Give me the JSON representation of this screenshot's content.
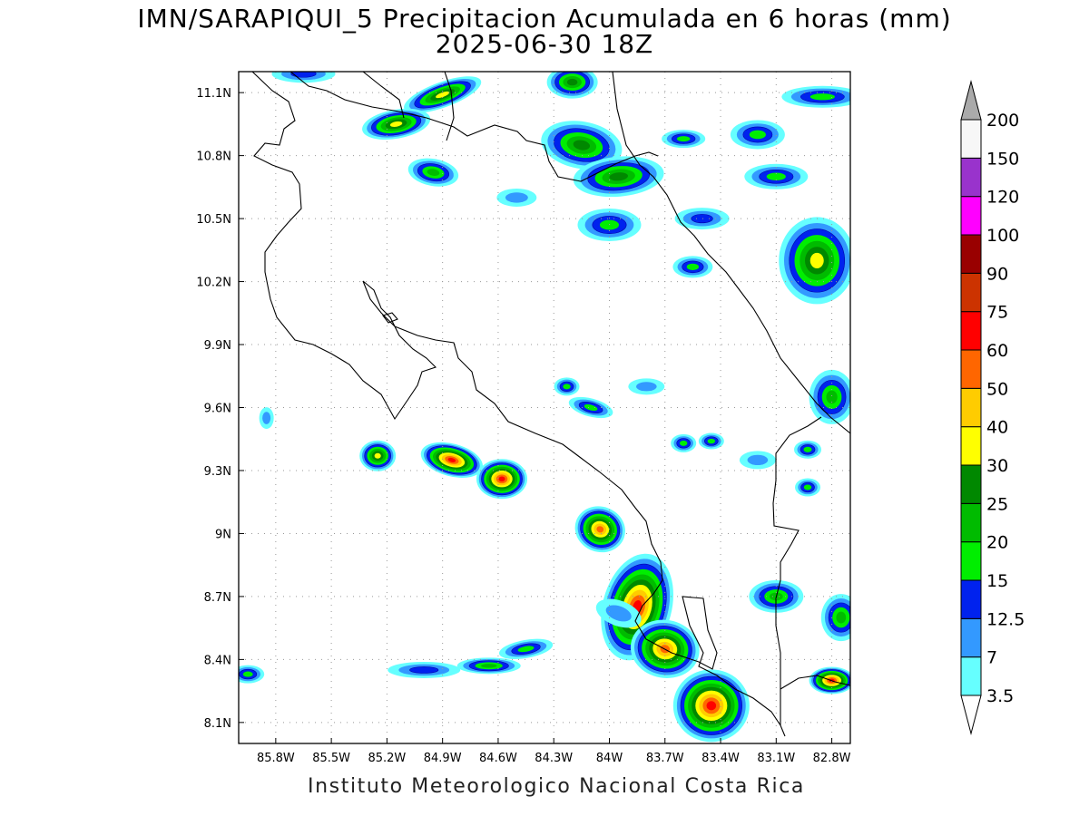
{
  "title": {
    "line1": "IMN/SARAPIQUI_5 Precipitacion Acumulada en 6 horas (mm)",
    "line2": "2025-06-30 18Z"
  },
  "credit": "Instituto Meteorologico Nacional Costa Rica",
  "map": {
    "lon_range": [
      -86.0,
      -82.7
    ],
    "lat_range": [
      8.0,
      11.2
    ],
    "lon_ticks": [
      {
        "value": -85.8,
        "label": "85.8W"
      },
      {
        "value": -85.5,
        "label": "85.5W"
      },
      {
        "value": -85.2,
        "label": "85.2W"
      },
      {
        "value": -84.9,
        "label": "84.9W"
      },
      {
        "value": -84.6,
        "label": "84.6W"
      },
      {
        "value": -84.3,
        "label": "84.3W"
      },
      {
        "value": -84.0,
        "label": "84W"
      },
      {
        "value": -83.7,
        "label": "83.7W"
      },
      {
        "value": -83.4,
        "label": "83.4W"
      },
      {
        "value": -83.1,
        "label": "83.1W"
      },
      {
        "value": -82.8,
        "label": "82.8W"
      }
    ],
    "lat_ticks": [
      {
        "value": 11.1,
        "label": "11.1N"
      },
      {
        "value": 10.8,
        "label": "10.8N"
      },
      {
        "value": 10.5,
        "label": "10.5N"
      },
      {
        "value": 10.2,
        "label": "10.2N"
      },
      {
        "value": 9.9,
        "label": "9.9N"
      },
      {
        "value": 9.6,
        "label": "9.6N"
      },
      {
        "value": 9.3,
        "label": "9.3N"
      },
      {
        "value": 9.0,
        "label": "9N"
      },
      {
        "value": 8.7,
        "label": "8.7N"
      },
      {
        "value": 8.4,
        "label": "8.4N"
      },
      {
        "value": 8.1,
        "label": "8.1N"
      }
    ],
    "grid": true,
    "colorbar": {
      "labels": [
        "3.5",
        "7",
        "12.5",
        "15",
        "20",
        "25",
        "30",
        "40",
        "50",
        "60",
        "75",
        "90",
        "100",
        "120",
        "150",
        "200"
      ],
      "colors": [
        "#66ffff",
        "#3399ff",
        "#0022ee",
        "#00ee00",
        "#00bb00",
        "#008800",
        "#ffff00",
        "#ffcc00",
        "#ff6600",
        "#ff0000",
        "#cc3300",
        "#990000",
        "#ff00ff",
        "#9933cc",
        "#f7f7f7"
      ],
      "over_color": "#aaaaaa",
      "under_color": "#ffffff"
    },
    "precip_cells": [
      {
        "lon": -84.9,
        "lat": 11.09,
        "rx": 45,
        "ry": 14,
        "rot": -20,
        "max": 6
      },
      {
        "lon": -85.15,
        "lat": 10.95,
        "rx": 38,
        "ry": 16,
        "rot": -10,
        "max": 6
      },
      {
        "lon": -85.65,
        "lat": 11.19,
        "rx": 35,
        "ry": 10,
        "rot": 0,
        "max": 2
      },
      {
        "lon": -84.2,
        "lat": 11.15,
        "rx": 28,
        "ry": 18,
        "rot": 0,
        "max": 5
      },
      {
        "lon": -84.15,
        "lat": 10.85,
        "rx": 45,
        "ry": 26,
        "rot": 10,
        "max": 5
      },
      {
        "lon": -83.95,
        "lat": 10.7,
        "rx": 50,
        "ry": 22,
        "rot": -5,
        "max": 5
      },
      {
        "lon": -84.95,
        "lat": 10.72,
        "rx": 28,
        "ry": 15,
        "rot": 10,
        "max": 4
      },
      {
        "lon": -83.6,
        "lat": 10.88,
        "rx": 24,
        "ry": 10,
        "rot": 0,
        "max": 3
      },
      {
        "lon": -83.2,
        "lat": 10.9,
        "rx": 30,
        "ry": 16,
        "rot": 0,
        "max": 3
      },
      {
        "lon": -82.85,
        "lat": 11.08,
        "rx": 45,
        "ry": 12,
        "rot": 0,
        "max": 3
      },
      {
        "lon": -83.1,
        "lat": 10.7,
        "rx": 35,
        "ry": 14,
        "rot": 0,
        "max": 3
      },
      {
        "lon": -84.0,
        "lat": 10.47,
        "rx": 35,
        "ry": 18,
        "rot": 0,
        "max": 3
      },
      {
        "lon": -84.5,
        "lat": 10.6,
        "rx": 22,
        "ry": 10,
        "rot": 0,
        "max": 1
      },
      {
        "lon": -83.5,
        "lat": 10.5,
        "rx": 30,
        "ry": 12,
        "rot": 0,
        "max": 2
      },
      {
        "lon": -82.88,
        "lat": 10.3,
        "rx": 42,
        "ry": 48,
        "rot": 0,
        "max": 6
      },
      {
        "lon": -83.55,
        "lat": 10.27,
        "rx": 22,
        "ry": 12,
        "rot": 0,
        "max": 3
      },
      {
        "lon": -82.8,
        "lat": 9.65,
        "rx": 25,
        "ry": 30,
        "rot": 0,
        "max": 4
      },
      {
        "lon": -84.23,
        "lat": 9.7,
        "rx": 14,
        "ry": 10,
        "rot": 0,
        "max": 3
      },
      {
        "lon": -84.1,
        "lat": 9.6,
        "rx": 25,
        "ry": 10,
        "rot": 15,
        "max": 3
      },
      {
        "lon": -83.8,
        "lat": 9.7,
        "rx": 20,
        "ry": 9,
        "rot": 0,
        "max": 1
      },
      {
        "lon": -85.25,
        "lat": 9.37,
        "rx": 20,
        "ry": 17,
        "rot": 0,
        "max": 6
      },
      {
        "lon": -84.85,
        "lat": 9.35,
        "rx": 35,
        "ry": 18,
        "rot": 15,
        "max": 9
      },
      {
        "lon": -84.58,
        "lat": 9.26,
        "rx": 28,
        "ry": 22,
        "rot": 0,
        "max": 9
      },
      {
        "lon": -84.05,
        "lat": 9.02,
        "rx": 28,
        "ry": 25,
        "rot": 20,
        "max": 8
      },
      {
        "lon": -83.6,
        "lat": 9.43,
        "rx": 14,
        "ry": 10,
        "rot": 0,
        "max": 3
      },
      {
        "lon": -83.45,
        "lat": 9.44,
        "rx": 14,
        "ry": 9,
        "rot": 0,
        "max": 3
      },
      {
        "lon": -83.2,
        "lat": 9.35,
        "rx": 20,
        "ry": 10,
        "rot": 0,
        "max": 1
      },
      {
        "lon": -82.93,
        "lat": 9.4,
        "rx": 15,
        "ry": 10,
        "rot": 0,
        "max": 3
      },
      {
        "lon": -82.93,
        "lat": 9.22,
        "rx": 14,
        "ry": 10,
        "rot": 0,
        "max": 3
      },
      {
        "lon": -83.85,
        "lat": 8.65,
        "rx": 38,
        "ry": 60,
        "rot": 15,
        "max": 9
      },
      {
        "lon": -83.7,
        "lat": 8.45,
        "rx": 38,
        "ry": 32,
        "rot": 10,
        "max": 8
      },
      {
        "lon": -83.45,
        "lat": 8.18,
        "rx": 42,
        "ry": 40,
        "rot": 0,
        "max": 9
      },
      {
        "lon": -83.1,
        "lat": 8.7,
        "rx": 30,
        "ry": 18,
        "rot": 0,
        "max": 4
      },
      {
        "lon": -82.75,
        "lat": 8.6,
        "rx": 22,
        "ry": 26,
        "rot": 0,
        "max": 4
      },
      {
        "lon": -82.8,
        "lat": 8.3,
        "rx": 25,
        "ry": 15,
        "rot": 0,
        "max": 9
      },
      {
        "lon": -85.0,
        "lat": 8.35,
        "rx": 40,
        "ry": 9,
        "rot": 0,
        "max": 2
      },
      {
        "lon": -84.65,
        "lat": 8.37,
        "rx": 35,
        "ry": 9,
        "rot": 0,
        "max": 4
      },
      {
        "lon": -84.45,
        "lat": 8.45,
        "rx": 30,
        "ry": 10,
        "rot": -10,
        "max": 3
      },
      {
        "lon": -85.95,
        "lat": 8.33,
        "rx": 18,
        "ry": 10,
        "rot": 0,
        "max": 3
      },
      {
        "lon": -85.85,
        "lat": 9.55,
        "rx": 8,
        "ry": 12,
        "rot": 0,
        "max": 1
      },
      {
        "lon": -83.95,
        "lat": 8.62,
        "rx": 26,
        "ry": 14,
        "rot": 20,
        "max": 1
      }
    ]
  }
}
